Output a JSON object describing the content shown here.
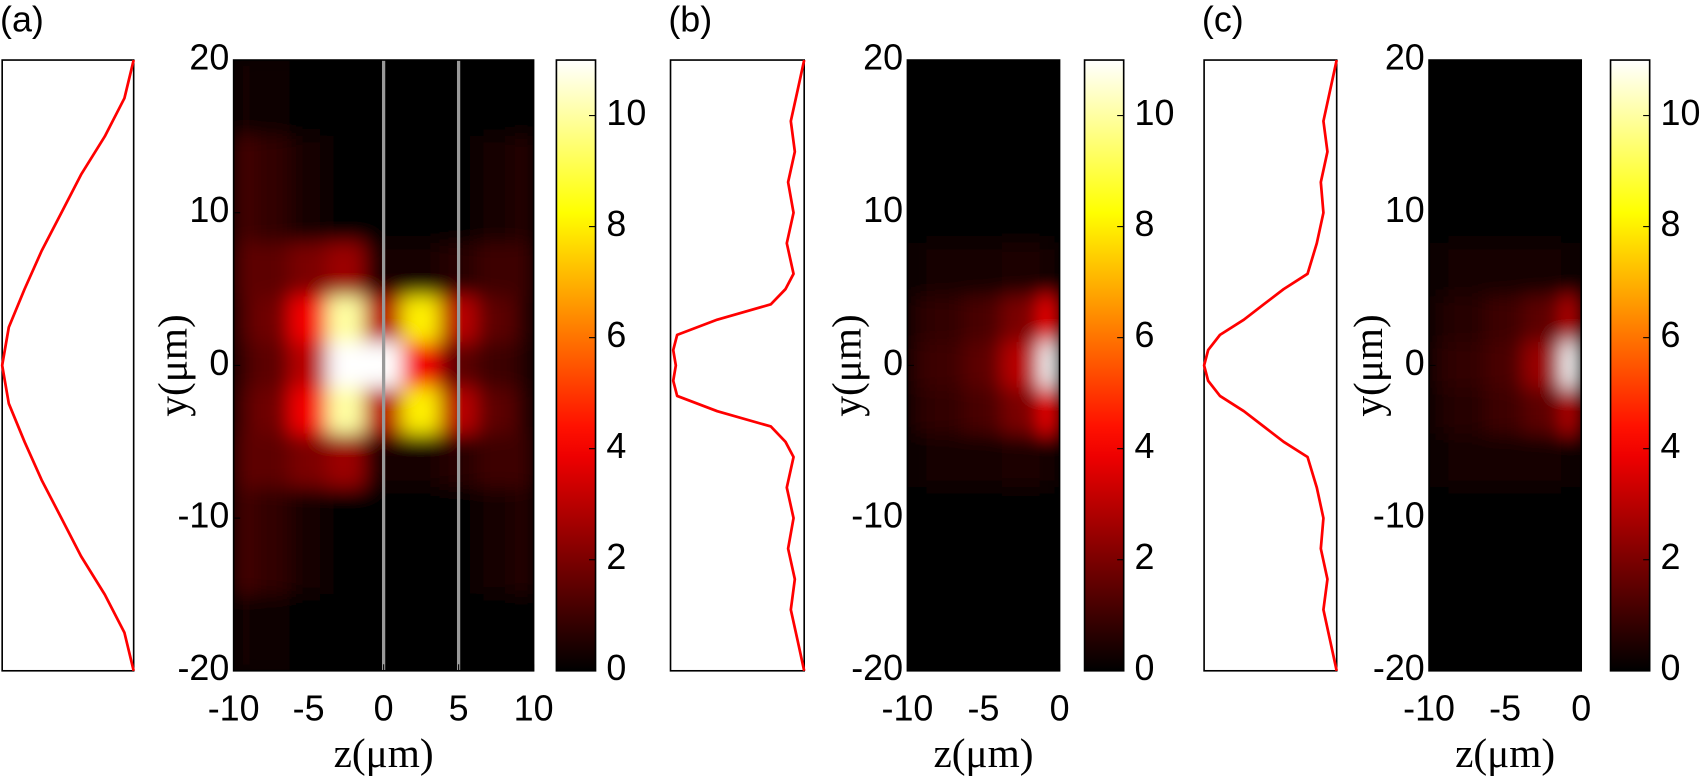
{
  "chart_data": [
    {
      "type": "line",
      "title": "(a)",
      "color": "#ff0000",
      "xlim": [
        0,
        1
      ],
      "ylim": [
        -20,
        20
      ],
      "y": [
        -20,
        -17.5,
        -15,
        -12.5,
        -10,
        -7.5,
        -5,
        -2.5,
        0,
        2.5,
        5,
        7.5,
        10,
        12.5,
        15,
        17.5,
        20
      ],
      "values": [
        1,
        0.93,
        0.78,
        0.6,
        0.45,
        0.3,
        0.17,
        0.05,
        0,
        0.05,
        0.17,
        0.3,
        0.45,
        0.6,
        0.78,
        0.93,
        1
      ]
    },
    {
      "type": "heatmap",
      "xlabel": "z(μm)",
      "ylabel": "y(μm)",
      "colormap": "hot",
      "xlim": [
        -10,
        10
      ],
      "ylim": [
        -20,
        20
      ],
      "xticks": [
        -10,
        -5,
        0,
        5,
        10
      ],
      "yticks": [
        -20,
        -10,
        0,
        10,
        20
      ],
      "clim": [
        0,
        11
      ],
      "cticks": [
        0,
        2,
        4,
        6,
        8,
        10
      ],
      "vlines": [
        0,
        5
      ],
      "vline_color": "#999999",
      "x": [
        -10,
        -7.5,
        -5,
        -2.5,
        0,
        2.5,
        5,
        7.5,
        10
      ],
      "y": [
        20,
        10,
        6,
        3,
        0,
        -3,
        -6,
        -10,
        -20
      ],
      "values": [
        [
          0.3,
          0.2,
          0.1,
          0,
          0,
          0,
          0,
          0,
          0
        ],
        [
          1.2,
          0.8,
          0.4,
          0.1,
          0,
          0,
          0.1,
          0.3,
          0.6
        ],
        [
          1.5,
          1.5,
          2,
          2.5,
          0.3,
          0.3,
          0.6,
          1,
          1
        ],
        [
          1.3,
          1.8,
          4,
          10,
          3,
          8,
          3,
          1.5,
          0.8
        ],
        [
          1,
          1.5,
          3,
          11,
          11,
          4,
          1.5,
          1,
          0.6
        ],
        [
          1.3,
          1.8,
          4,
          10,
          3,
          8,
          3,
          1.5,
          0.8
        ],
        [
          1.5,
          1.5,
          2,
          2.5,
          0.3,
          0.3,
          0.6,
          1,
          1
        ],
        [
          1.2,
          0.8,
          0.4,
          0.1,
          0,
          0,
          0.1,
          0.3,
          0.6
        ],
        [
          0.3,
          0.2,
          0.1,
          0,
          0,
          0,
          0,
          0,
          0
        ]
      ]
    },
    {
      "type": "line",
      "title": "(b)",
      "color": "#ff0000",
      "xlim": [
        0,
        1
      ],
      "ylim": [
        -20,
        20
      ],
      "y": [
        -20,
        -18,
        -16,
        -14,
        -12,
        -10,
        -8,
        -6,
        -5,
        -4,
        -3,
        -2,
        -1,
        0,
        1,
        2,
        3,
        4,
        5,
        6,
        8,
        10,
        12,
        14,
        16,
        18,
        20
      ],
      "values": [
        1,
        0.95,
        0.9,
        0.93,
        0.88,
        0.92,
        0.87,
        0.92,
        0.86,
        0.75,
        0.35,
        0.05,
        0.02,
        0.04,
        0.02,
        0.05,
        0.35,
        0.75,
        0.86,
        0.92,
        0.87,
        0.92,
        0.88,
        0.93,
        0.9,
        0.95,
        1
      ]
    },
    {
      "type": "heatmap",
      "xlabel": "z(μm)",
      "ylabel": "y(μm)",
      "colormap": "hot",
      "xlim": [
        -10,
        0
      ],
      "ylim": [
        -20,
        20
      ],
      "xticks": [
        -10,
        -5,
        0
      ],
      "yticks": [
        -20,
        -10,
        0,
        10,
        20
      ],
      "clim": [
        0,
        11
      ],
      "cticks": [
        0,
        2,
        4,
        6,
        8,
        10
      ],
      "x": [
        -10,
        -7.5,
        -5,
        -2.5,
        0
      ],
      "y": [
        20,
        10,
        6,
        3,
        0,
        -3,
        -6,
        -10,
        -20
      ],
      "values": [
        [
          0,
          0,
          0,
          0,
          0
        ],
        [
          0,
          0,
          0.1,
          0.1,
          0
        ],
        [
          0.2,
          0.3,
          0.4,
          0.5,
          0.3
        ],
        [
          0.6,
          0.8,
          1.2,
          2,
          4
        ],
        [
          0.8,
          1,
          1.5,
          3,
          11
        ],
        [
          0.6,
          0.8,
          1.2,
          2,
          4
        ],
        [
          0.2,
          0.3,
          0.4,
          0.5,
          0.3
        ],
        [
          0,
          0,
          0.1,
          0.1,
          0
        ],
        [
          0,
          0,
          0,
          0,
          0
        ]
      ]
    },
    {
      "type": "line",
      "title": "(c)",
      "color": "#ff0000",
      "xlim": [
        0,
        1
      ],
      "ylim": [
        -20,
        20
      ],
      "y": [
        -20,
        -18,
        -16,
        -14,
        -12,
        -10,
        -8,
        -6,
        -5,
        -4,
        -3,
        -2,
        -1,
        0,
        1,
        2,
        3,
        4,
        5,
        6,
        8,
        10,
        12,
        14,
        16,
        18,
        20
      ],
      "values": [
        1,
        0.95,
        0.9,
        0.93,
        0.88,
        0.9,
        0.85,
        0.78,
        0.6,
        0.45,
        0.3,
        0.12,
        0.03,
        0,
        0.03,
        0.12,
        0.3,
        0.45,
        0.6,
        0.78,
        0.85,
        0.9,
        0.88,
        0.93,
        0.9,
        0.95,
        1
      ]
    },
    {
      "type": "heatmap",
      "xlabel": "z(μm)",
      "ylabel": "y(μm)",
      "colormap": "hot",
      "xlim": [
        -10,
        0
      ],
      "ylim": [
        -20,
        20
      ],
      "xticks": [
        -10,
        -5,
        0
      ],
      "yticks": [
        -20,
        -10,
        0,
        10,
        20
      ],
      "clim": [
        0,
        11
      ],
      "cticks": [
        0,
        2,
        4,
        6,
        8,
        10
      ],
      "x": [
        -10,
        -7.5,
        -5,
        -2.5,
        0
      ],
      "y": [
        20,
        10,
        6,
        3,
        0,
        -3,
        -6,
        -10,
        -20
      ],
      "values": [
        [
          0,
          0,
          0,
          0,
          0
        ],
        [
          0,
          0,
          0,
          0.1,
          0
        ],
        [
          0.2,
          0.3,
          0.3,
          0.4,
          0.2
        ],
        [
          0.5,
          0.6,
          1,
          1.5,
          3
        ],
        [
          0.6,
          0.8,
          1.2,
          2.5,
          11
        ],
        [
          0.5,
          0.6,
          1,
          1.5,
          3
        ],
        [
          0.2,
          0.3,
          0.3,
          0.4,
          0.2
        ],
        [
          0,
          0,
          0,
          0.1,
          0
        ],
        [
          0,
          0,
          0,
          0,
          0
        ]
      ]
    }
  ]
}
